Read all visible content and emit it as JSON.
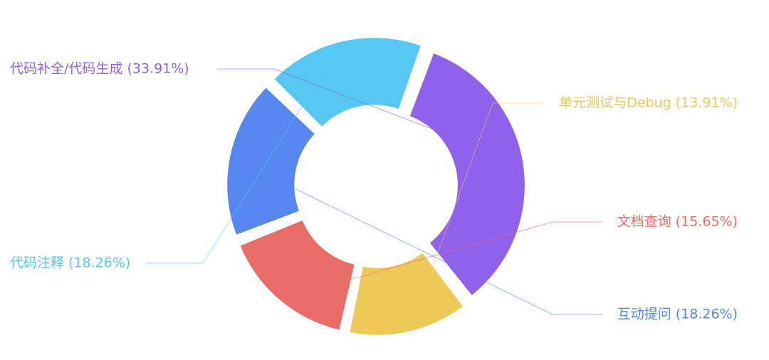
{
  "chart_data": {
    "type": "pie",
    "style": "donut",
    "title": "",
    "slices": [
      {
        "name": "代码补全/代码生成",
        "value": 33.91,
        "label": "代码补全/代码生成 (33.91%)",
        "color": "#9061EC"
      },
      {
        "name": "单元测试与Debug",
        "value": 13.91,
        "label": "单元测试与Debug (13.91%)",
        "color": "#EDC958"
      },
      {
        "name": "文档查询",
        "value": 15.65,
        "label": "文档查询 (15.65%)",
        "color": "#EA6C67"
      },
      {
        "name": "互动提问",
        "value": 18.26,
        "label": "互动提问 (18.26%)",
        "color": "#5687F0"
      },
      {
        "name": "代码注释",
        "value": 18.26,
        "label": "代码注释 (18.26%)",
        "color": "#55C7F2"
      }
    ]
  }
}
